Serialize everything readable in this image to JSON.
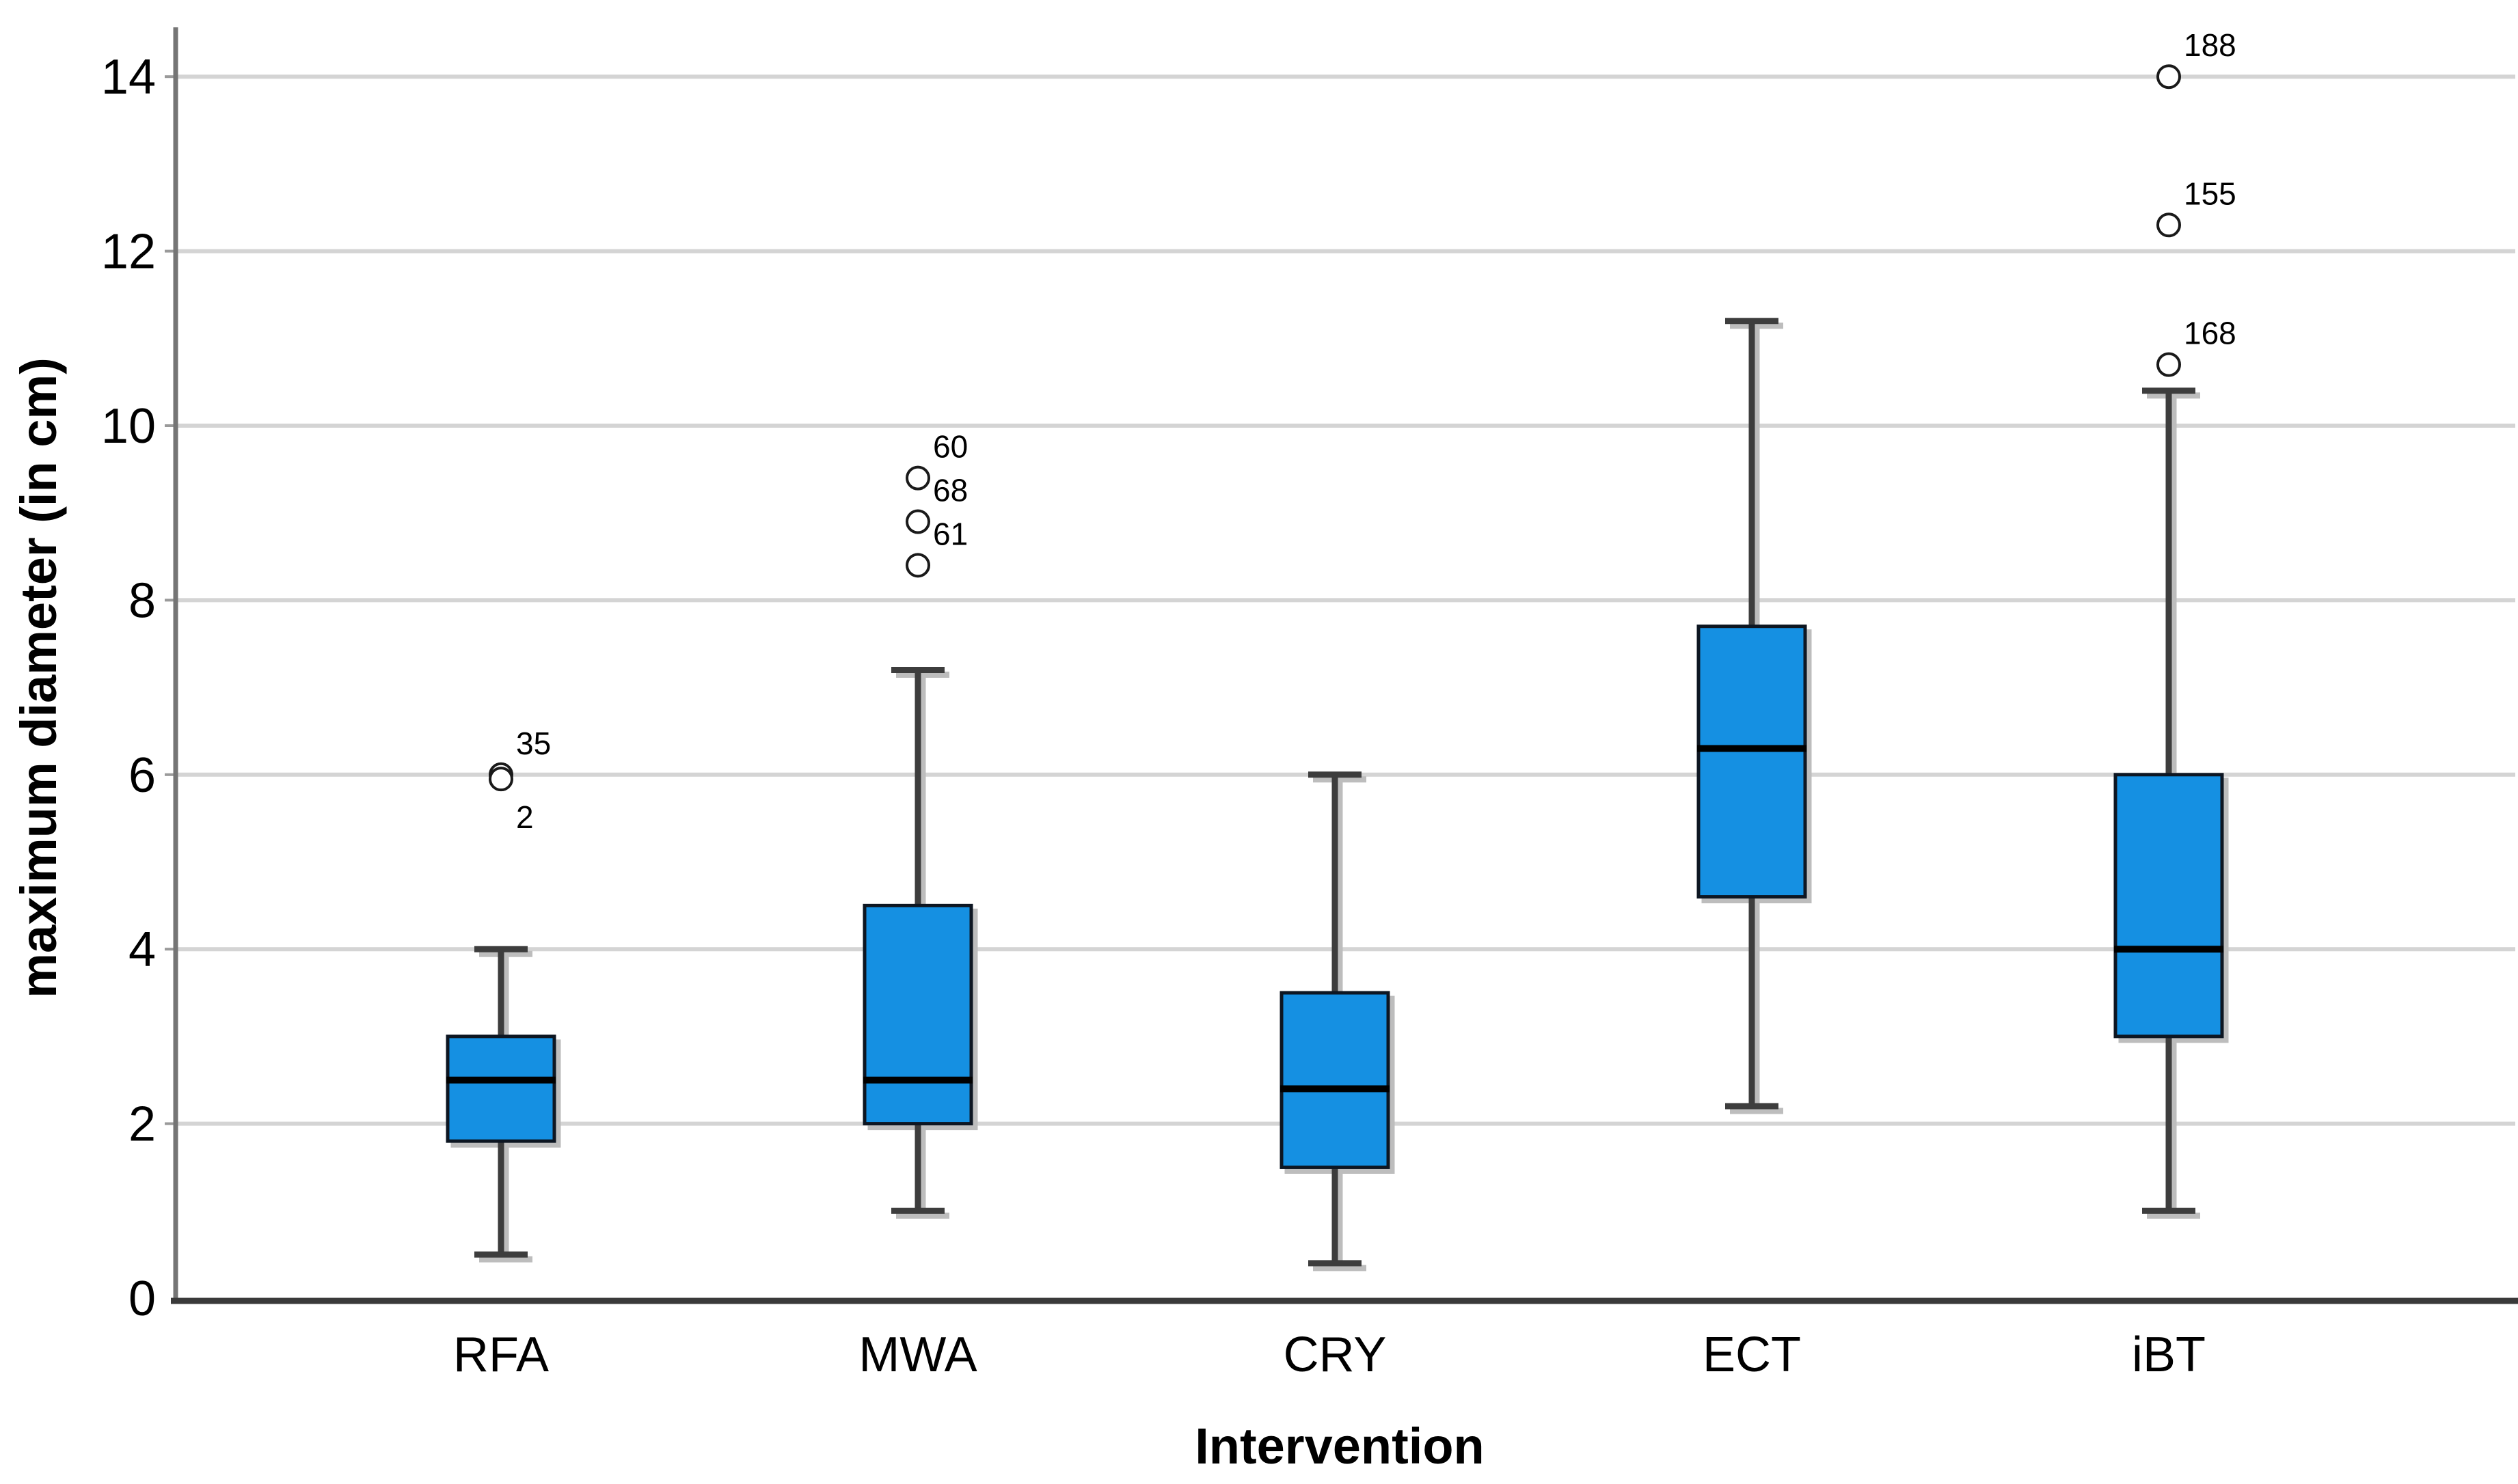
{
  "chart_data": {
    "type": "boxplot",
    "title": "",
    "xlabel": "Intervention",
    "ylabel": "maximum diameter (in cm)",
    "ylim": [
      0,
      14
    ],
    "yticks": [
      0,
      2,
      4,
      6,
      8,
      10,
      12,
      14
    ],
    "grid": "horizontal gridlines at even tick values, light gray",
    "legend": "none",
    "categories": [
      "RFA",
      "MWA",
      "CRY",
      "ECT",
      "iBT"
    ],
    "series": [
      {
        "category": "RFA",
        "whisker_low": 0.5,
        "q1": 1.8,
        "median": 2.5,
        "q3": 3.0,
        "whisker_high": 4.0,
        "outliers": [
          {
            "value": 6.0,
            "label": "35",
            "label_pos": "above"
          },
          {
            "value": 5.95,
            "label": "2",
            "label_pos": "below"
          }
        ]
      },
      {
        "category": "MWA",
        "whisker_low": 1.0,
        "q1": 2.0,
        "median": 2.5,
        "q3": 4.5,
        "whisker_high": 7.2,
        "outliers": [
          {
            "value": 9.4,
            "label": "60",
            "label_pos": "above"
          },
          {
            "value": 8.9,
            "label": "68",
            "label_pos": "above"
          },
          {
            "value": 8.4,
            "label": "61",
            "label_pos": "above"
          }
        ]
      },
      {
        "category": "CRY",
        "whisker_low": 0.4,
        "q1": 1.5,
        "median": 2.4,
        "q3": 3.5,
        "whisker_high": 6.0,
        "outliers": []
      },
      {
        "category": "ECT",
        "whisker_low": 2.2,
        "q1": 4.6,
        "median": 6.3,
        "q3": 7.7,
        "whisker_high": 11.2,
        "outliers": []
      },
      {
        "category": "iBT",
        "whisker_low": 1.0,
        "q1": 3.0,
        "median": 4.0,
        "q3": 6.0,
        "whisker_high": 10.4,
        "outliers": [
          {
            "value": 10.7,
            "label": "168",
            "label_pos": "above"
          },
          {
            "value": 12.3,
            "label": "155",
            "label_pos": "above"
          },
          {
            "value": 14.0,
            "label": "188",
            "label_pos": "above"
          }
        ]
      }
    ],
    "colors": {
      "background": "#ffffff",
      "box_fill": "#1590E2",
      "box_border": "#0d1622",
      "median_line": "#000000",
      "whisker": "#3d3d3d",
      "gridline": "#d4d4d4",
      "tick_mark": "#9a9a9a",
      "y_axis_line": "#757575",
      "x_axis_line": "#3a3a3a",
      "outlier_stroke": "#1a1a1a",
      "text": "#000000",
      "shadow": "#bdbdbd"
    }
  }
}
